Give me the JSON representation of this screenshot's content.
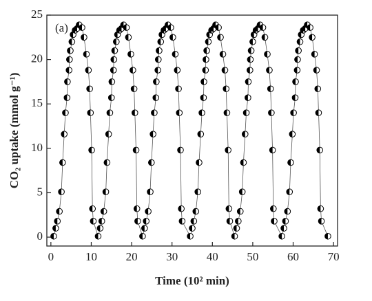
{
  "chart_data": {
    "type": "scatter",
    "annotation": "(a)",
    "xlabel": "Time (10² min)",
    "ylabel": "CO₂ uptake (mmol g⁻¹)",
    "xlim": [
      -1,
      71
    ],
    "xticks": [
      0,
      10,
      20,
      30,
      40,
      50,
      60,
      70
    ],
    "ylim": [
      -1,
      25
    ],
    "yticks": [
      0,
      5,
      10,
      15,
      20,
      25
    ],
    "grid": false,
    "series": [
      {
        "color": "#000000",
        "line_color": "#555555",
        "x": [
          0.7,
          1.2,
          1.6,
          2.1,
          2.6,
          2.9,
          3.3,
          3.6,
          4.0,
          4.1,
          4.5,
          4.6,
          4.8,
          5.2,
          5.5,
          6.0,
          6.5,
          7.0,
          7.7,
          8.2,
          8.8,
          9.3,
          9.6,
          9.8,
          10.1,
          10.3,
          10.5,
          11.7,
          12.2,
          12.6,
          13.1,
          13.6,
          13.9,
          14.3,
          14.6,
          15.0,
          15.1,
          15.5,
          15.6,
          15.8,
          16.2,
          16.5,
          17.0,
          17.5,
          18.0,
          18.7,
          19.2,
          19.8,
          20.3,
          20.6,
          20.8,
          21.1,
          21.3,
          21.5,
          22.7,
          23.2,
          23.6,
          24.1,
          24.6,
          24.9,
          25.3,
          25.6,
          26.0,
          26.1,
          26.5,
          26.6,
          26.8,
          27.2,
          27.5,
          28.0,
          28.5,
          29.0,
          29.7,
          30.2,
          30.8,
          31.3,
          31.6,
          31.8,
          32.1,
          32.3,
          32.5,
          34.5,
          35.0,
          35.4,
          35.9,
          36.4,
          36.7,
          37.1,
          37.4,
          37.8,
          37.9,
          38.3,
          38.4,
          38.6,
          39.0,
          39.3,
          39.8,
          40.3,
          40.8,
          41.5,
          42.0,
          42.6,
          43.1,
          43.4,
          43.6,
          43.9,
          44.1,
          44.3,
          45.5,
          46.0,
          46.4,
          46.9,
          47.4,
          47.7,
          48.1,
          48.4,
          48.8,
          48.9,
          49.3,
          49.4,
          49.6,
          50.0,
          50.3,
          50.8,
          51.3,
          51.8,
          52.5,
          53.0,
          53.6,
          54.1,
          54.4,
          54.6,
          54.9,
          55.1,
          55.3,
          57.2,
          57.7,
          58.1,
          58.6,
          59.1,
          59.4,
          59.8,
          60.1,
          60.5,
          60.6,
          61.0,
          61.1,
          61.3,
          61.7,
          62.0,
          62.5,
          63.0,
          63.5,
          64.2,
          64.7,
          65.3,
          65.8,
          66.1,
          66.3,
          66.6,
          66.8,
          67.0,
          68.6
        ],
        "values": [
          0.1,
          1.0,
          1.8,
          2.9,
          5.1,
          8.4,
          11.6,
          14.0,
          15.7,
          17.5,
          18.8,
          20.0,
          21.0,
          22.0,
          22.8,
          23.3,
          23.5,
          23.9,
          23.6,
          22.5,
          20.6,
          18.8,
          16.7,
          14.0,
          9.8,
          3.2,
          1.8,
          0.1,
          1.0,
          1.8,
          2.9,
          5.1,
          8.4,
          11.6,
          14.0,
          15.7,
          17.5,
          18.8,
          20.0,
          21.0,
          22.0,
          22.8,
          23.3,
          23.5,
          23.9,
          23.6,
          22.5,
          20.6,
          18.8,
          16.7,
          14.0,
          9.8,
          3.2,
          1.8,
          0.1,
          1.0,
          1.8,
          2.9,
          5.1,
          8.4,
          11.6,
          14.0,
          15.7,
          17.5,
          18.8,
          20.0,
          21.0,
          22.0,
          22.8,
          23.3,
          23.5,
          23.9,
          23.6,
          22.5,
          20.6,
          18.8,
          16.7,
          14.0,
          9.8,
          3.2,
          1.8,
          0.1,
          1.0,
          1.8,
          2.9,
          5.1,
          8.4,
          11.6,
          14.0,
          15.7,
          17.5,
          18.8,
          20.0,
          21.0,
          22.0,
          22.8,
          23.3,
          23.5,
          23.9,
          23.6,
          22.5,
          20.6,
          18.8,
          16.7,
          14.0,
          9.8,
          3.2,
          1.8,
          0.1,
          1.0,
          1.8,
          2.9,
          5.1,
          8.4,
          11.6,
          14.0,
          15.7,
          17.5,
          18.8,
          20.0,
          21.0,
          22.0,
          22.8,
          23.3,
          23.5,
          23.9,
          23.6,
          22.5,
          20.6,
          18.8,
          16.7,
          14.0,
          9.8,
          3.2,
          1.8,
          0.1,
          1.0,
          1.8,
          2.9,
          5.1,
          8.4,
          11.6,
          14.0,
          15.7,
          17.5,
          18.8,
          20.0,
          21.0,
          22.0,
          22.8,
          23.3,
          23.5,
          23.9,
          23.6,
          22.5,
          20.6,
          18.8,
          16.7,
          14.0,
          9.8,
          3.2,
          1.8,
          0.1
        ]
      }
    ]
  }
}
